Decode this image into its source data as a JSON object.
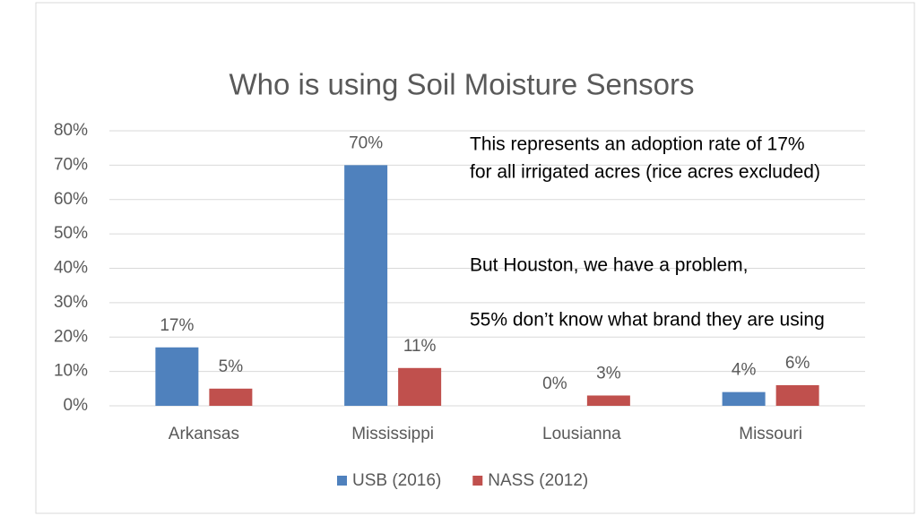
{
  "chart_data": {
    "type": "bar",
    "title": "Who is using Soil Moisture Sensors",
    "categories": [
      "Arkansas",
      "Mississippi",
      "Lousianna",
      "Missouri"
    ],
    "series": [
      {
        "name": "USB (2016)",
        "color": "#4f81bd",
        "values": [
          17,
          70,
          0,
          4
        ],
        "value_labels": [
          "17%",
          "70%",
          "0%",
          "4%"
        ]
      },
      {
        "name": "NASS (2012)",
        "color": "#c0504d",
        "values": [
          5,
          11,
          3,
          6
        ],
        "value_labels": [
          "5%",
          "11%",
          "3%",
          "6%"
        ]
      }
    ],
    "ylim": [
      0,
      80
    ],
    "yticks": [
      {
        "value": 0,
        "label": "0%"
      },
      {
        "value": 10,
        "label": "10%"
      },
      {
        "value": 20,
        "label": "20%"
      },
      {
        "value": 30,
        "label": "30%"
      },
      {
        "value": 40,
        "label": "40%"
      },
      {
        "value": 50,
        "label": "50%"
      },
      {
        "value": 60,
        "label": "60%"
      },
      {
        "value": 70,
        "label": "70%"
      },
      {
        "value": 80,
        "label": "80%"
      }
    ],
    "grid": true,
    "legend": "bottom",
    "annotations": [
      "This represents an adoption rate of 17%",
      "for all irrigated acres (rice acres excluded)",
      "But Houston, we have a problem,",
      "55% don’t know what brand they are using"
    ]
  }
}
